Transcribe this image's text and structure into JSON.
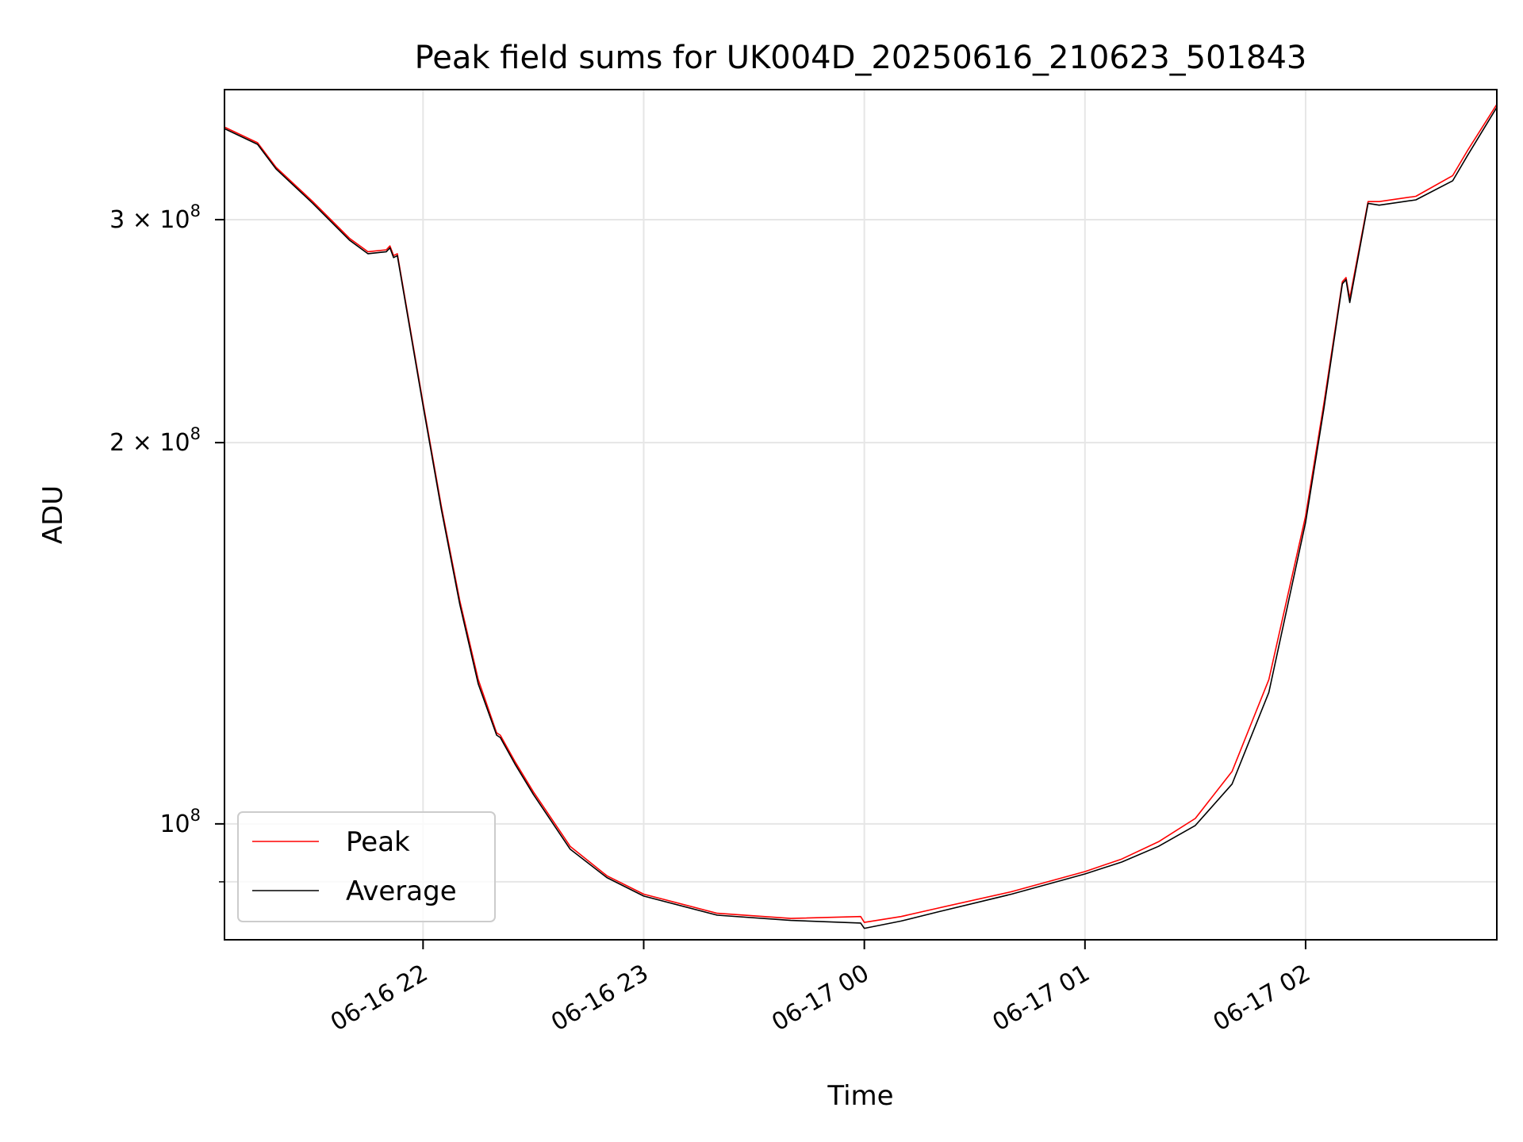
{
  "chart_data": {
    "type": "line",
    "title": "Peak field sums for UK004D_20250616_210623_501843",
    "xlabel": "Time",
    "ylabel": "ADU",
    "x_range": [
      "2025-06-16 21:06",
      "2025-06-17 02:52"
    ],
    "y_range": [
      81000000,
      380000000
    ],
    "y_scale": "log",
    "grid": true,
    "legend_position": "lower left",
    "x_ticks": [
      {
        "value": "2025-06-16 22:00",
        "label": "06-16 22"
      },
      {
        "value": "2025-06-16 23:00",
        "label": "06-16 23"
      },
      {
        "value": "2025-06-17 00:00",
        "label": "06-17 00"
      },
      {
        "value": "2025-06-17 01:00",
        "label": "06-17 01"
      },
      {
        "value": "2025-06-17 02:00",
        "label": "06-17 02"
      }
    ],
    "y_ticks_major": [
      {
        "value": 100000000,
        "label_base": "10",
        "label_exp": "8"
      },
      {
        "value": 200000000,
        "label_base": "2 × 10",
        "label_exp": "8"
      },
      {
        "value": 300000000,
        "label_base": "3 × 10",
        "label_exp": "8"
      }
    ],
    "y_ticks_minor": [
      90000000
    ],
    "series": [
      {
        "name": "Peak",
        "color": "#ff0000",
        "x": [
          "2025-06-16 21:06",
          "2025-06-16 21:15",
          "2025-06-16 21:20",
          "2025-06-16 21:30",
          "2025-06-16 21:40",
          "2025-06-16 21:45",
          "2025-06-16 21:50",
          "2025-06-16 21:51",
          "2025-06-16 21:52",
          "2025-06-16 21:53",
          "2025-06-16 22:00",
          "2025-06-16 22:05",
          "2025-06-16 22:10",
          "2025-06-16 22:15",
          "2025-06-16 22:20",
          "2025-06-16 22:21",
          "2025-06-16 22:25",
          "2025-06-16 22:30",
          "2025-06-16 22:40",
          "2025-06-16 22:50",
          "2025-06-16 23:00",
          "2025-06-16 23:20",
          "2025-06-16 23:40",
          "2025-06-16 23:59",
          "2025-06-17 00:00",
          "2025-06-17 00:10",
          "2025-06-17 00:20",
          "2025-06-17 00:40",
          "2025-06-17 01:00",
          "2025-06-17 01:10",
          "2025-06-17 01:20",
          "2025-06-17 01:30",
          "2025-06-17 01:40",
          "2025-06-17 01:50",
          "2025-06-17 02:00",
          "2025-06-17 02:05",
          "2025-06-17 02:10",
          "2025-06-17 02:11",
          "2025-06-17 02:12",
          "2025-06-17 02:17",
          "2025-06-17 02:20",
          "2025-06-17 02:30",
          "2025-06-17 02:40",
          "2025-06-17 02:44",
          "2025-06-17 02:52"
        ],
        "y": [
          355000000,
          345000000,
          330000000,
          310000000,
          290000000,
          283000000,
          284000000,
          286000000,
          281000000,
          282000000,
          215000000,
          178000000,
          150000000,
          130000000,
          118000000,
          117500000,
          112000000,
          106000000,
          96000000,
          91000000,
          88000000,
          85000000,
          84200000,
          84500000,
          83600000,
          84500000,
          85800000,
          88400000,
          91700000,
          93800000,
          96800000,
          101000000,
          110000000,
          130000000,
          175000000,
          215000000,
          268000000,
          270000000,
          260000000,
          310000000,
          310000000,
          313000000,
          325000000,
          340000000,
          370000000
        ]
      },
      {
        "name": "Average",
        "color": "#000000",
        "x": [
          "2025-06-16 21:06",
          "2025-06-16 21:15",
          "2025-06-16 21:20",
          "2025-06-16 21:30",
          "2025-06-16 21:40",
          "2025-06-16 21:45",
          "2025-06-16 21:50",
          "2025-06-16 21:51",
          "2025-06-16 21:52",
          "2025-06-16 21:53",
          "2025-06-16 22:00",
          "2025-06-16 22:05",
          "2025-06-16 22:10",
          "2025-06-16 22:15",
          "2025-06-16 22:20",
          "2025-06-16 22:21",
          "2025-06-16 22:25",
          "2025-06-16 22:30",
          "2025-06-16 22:40",
          "2025-06-16 22:50",
          "2025-06-16 23:00",
          "2025-06-16 23:20",
          "2025-06-16 23:40",
          "2025-06-16 23:59",
          "2025-06-17 00:00",
          "2025-06-17 00:10",
          "2025-06-17 00:20",
          "2025-06-17 00:40",
          "2025-06-17 01:00",
          "2025-06-17 01:10",
          "2025-06-17 01:20",
          "2025-06-17 01:30",
          "2025-06-17 01:40",
          "2025-06-17 01:50",
          "2025-06-17 02:00",
          "2025-06-17 02:05",
          "2025-06-17 02:10",
          "2025-06-17 02:11",
          "2025-06-17 02:12",
          "2025-06-17 02:17",
          "2025-06-17 02:20",
          "2025-06-17 02:30",
          "2025-06-17 02:40",
          "2025-06-17 02:44",
          "2025-06-17 02:52"
        ],
        "y": [
          354000000,
          344000000,
          329000000,
          309000000,
          289000000,
          282000000,
          283000000,
          285000000,
          280000000,
          281000000,
          214000000,
          177000000,
          149000000,
          129000000,
          117500000,
          117000000,
          111500000,
          105500000,
          95500000,
          90700000,
          87700000,
          84700000,
          83900000,
          83500000,
          82700000,
          83800000,
          85200000,
          88000000,
          91300000,
          93300000,
          96000000,
          99700000,
          107500000,
          127000000,
          173000000,
          213000000,
          267000000,
          269000000,
          258000000,
          309000000,
          308000000,
          311000000,
          322000000,
          337000000,
          368000000
        ]
      }
    ]
  }
}
